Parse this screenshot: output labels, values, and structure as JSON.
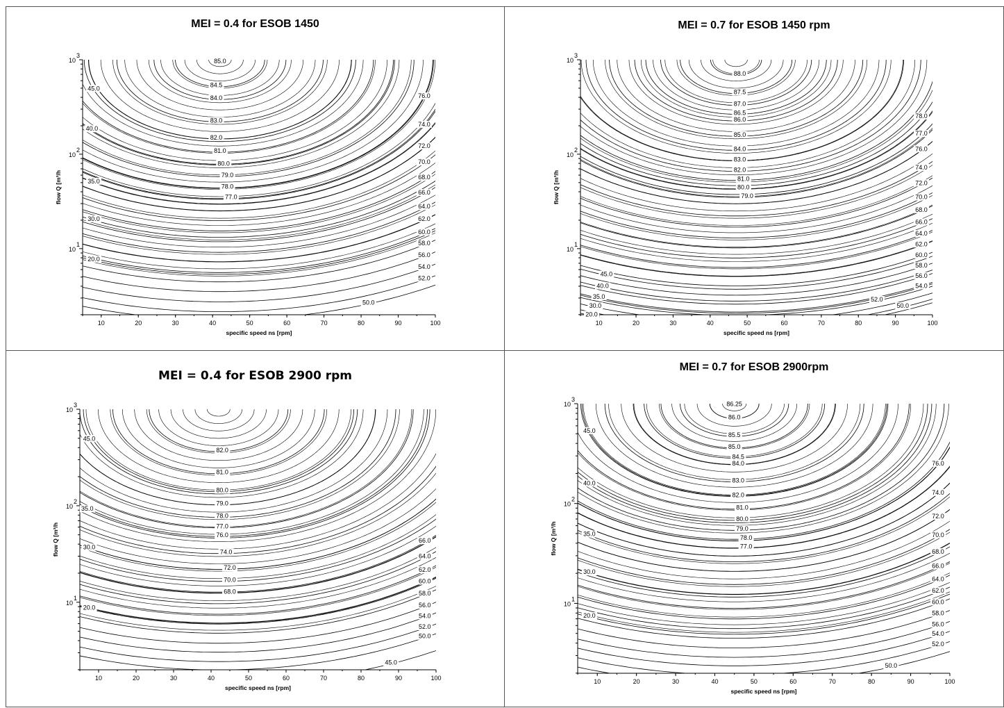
{
  "chart_data": [
    {
      "type": "contour",
      "title": "MEI = 0.4 for ESOB 1450",
      "xlabel": "specific speed ns [rpm]",
      "ylabel": "flow Q [m³/h",
      "x_ticks": [
        "10",
        "20",
        "30",
        "40",
        "50",
        "60",
        "70",
        "80",
        "90",
        "100"
      ],
      "y_ticks": [
        {
          "base": "10",
          "exp": "1"
        },
        {
          "base": "10",
          "exp": "2"
        },
        {
          "base": "10",
          "exp": "3"
        }
      ],
      "xlim": [
        5,
        100
      ],
      "ylim_log10": [
        0.3,
        3
      ],
      "optimum": {
        "x": 42,
        "log10_y": 3.0
      },
      "levels": [
        {
          "label": "85.0",
          "x": 42,
          "q": 935
        },
        {
          "label": "84.5",
          "x": 41,
          "q": 520
        },
        {
          "label": "84.0",
          "x": 41,
          "q": 380
        },
        {
          "label": "83.0",
          "x": 41,
          "q": 220
        },
        {
          "label": "82.0",
          "x": 41,
          "q": 145
        },
        {
          "label": "81.0",
          "x": 42,
          "q": 105
        },
        {
          "label": "80.0",
          "x": 43,
          "q": 77
        },
        {
          "label": "79.0",
          "x": 44,
          "q": 58
        },
        {
          "label": "78.0",
          "x": 44,
          "q": 44
        },
        {
          "label": "77.0",
          "x": 45,
          "q": 34
        },
        {
          "label": "76.0",
          "x": 97,
          "q": 400
        },
        {
          "label": "74.0",
          "x": 97,
          "q": 200
        },
        {
          "label": "72.0",
          "x": 97,
          "q": 118
        },
        {
          "label": "70.0",
          "x": 97,
          "q": 80
        },
        {
          "label": "68.0",
          "x": 97,
          "q": 55
        },
        {
          "label": "66.0",
          "x": 97,
          "q": 38
        },
        {
          "label": "64.0",
          "x": 97,
          "q": 27
        },
        {
          "label": "62.0",
          "x": 97,
          "q": 20
        },
        {
          "label": "60.0",
          "x": 97,
          "q": 14.5
        },
        {
          "label": "58.0",
          "x": 97,
          "q": 11
        },
        {
          "label": "56.0",
          "x": 97,
          "q": 8.3
        },
        {
          "label": "54.0",
          "x": 97,
          "q": 6.2
        },
        {
          "label": "52.0",
          "x": 97,
          "q": 4.7
        },
        {
          "label": "50.0",
          "x": 82,
          "q": 2.6
        },
        {
          "label": "45.0",
          "x": 8,
          "q": 480
        },
        {
          "label": "40.0",
          "x": 7.5,
          "q": 180
        },
        {
          "label": "35.0",
          "x": 8,
          "q": 50
        },
        {
          "label": "30.0",
          "x": 8,
          "q": 20
        },
        {
          "label": "20.0",
          "x": 8,
          "q": 7.5
        }
      ]
    },
    {
      "type": "contour",
      "title": "MEI = 0.7 for ESOB 1450 rpm",
      "xlabel": "specific speed ns [rpm]",
      "ylabel": "flow Q [m³/h",
      "x_ticks": [
        "10",
        "20",
        "30",
        "40",
        "50",
        "60",
        "70",
        "80",
        "90",
        "100"
      ],
      "y_ticks": [
        {
          "base": "10",
          "exp": "1"
        },
        {
          "base": "10",
          "exp": "2"
        },
        {
          "base": "10",
          "exp": "3"
        }
      ],
      "xlim": [
        5,
        100
      ],
      "ylim_log10": [
        0.3,
        3
      ],
      "optimum": {
        "x": 47,
        "log10_y": 3.0
      },
      "levels": [
        {
          "label": "88.0",
          "x": 48,
          "q": 690
        },
        {
          "label": "87.5",
          "x": 48,
          "q": 440
        },
        {
          "label": "87.0",
          "x": 48,
          "q": 330
        },
        {
          "label": "86.5",
          "x": 48,
          "q": 265
        },
        {
          "label": "86.0",
          "x": 48,
          "q": 225
        },
        {
          "label": "85.0",
          "x": 48,
          "q": 155
        },
        {
          "label": "84.0",
          "x": 48,
          "q": 110
        },
        {
          "label": "83.0",
          "x": 48,
          "q": 85
        },
        {
          "label": "82.0",
          "x": 48,
          "q": 66
        },
        {
          "label": "81.0",
          "x": 49,
          "q": 53
        },
        {
          "label": "80.0",
          "x": 49,
          "q": 43
        },
        {
          "label": "79.0",
          "x": 50,
          "q": 35
        },
        {
          "label": "78.0",
          "x": 97,
          "q": 245
        },
        {
          "label": "77.0",
          "x": 97,
          "q": 160
        },
        {
          "label": "76.0",
          "x": 97,
          "q": 110
        },
        {
          "label": "74.0",
          "x": 97,
          "q": 70
        },
        {
          "label": "72.0",
          "x": 97,
          "q": 48
        },
        {
          "label": "70.0",
          "x": 97,
          "q": 34
        },
        {
          "label": "68.0",
          "x": 97,
          "q": 25
        },
        {
          "label": "66.0",
          "x": 97,
          "q": 18.5
        },
        {
          "label": "64.0",
          "x": 97,
          "q": 14
        },
        {
          "label": "62.0",
          "x": 97,
          "q": 10.8
        },
        {
          "label": "60.0",
          "x": 97,
          "q": 8.3
        },
        {
          "label": "58.0",
          "x": 97,
          "q": 6.4
        },
        {
          "label": "56.0",
          "x": 97,
          "q": 5.0
        },
        {
          "label": "54.0",
          "x": 97,
          "q": 3.9
        },
        {
          "label": "52.0",
          "x": 85,
          "q": 2.8
        },
        {
          "label": "50.0",
          "x": 92,
          "q": 2.4
        },
        {
          "label": "45.0",
          "x": 12,
          "q": 5.2
        },
        {
          "label": "40.0",
          "x": 11,
          "q": 3.9
        },
        {
          "label": "35.0",
          "x": 10,
          "q": 3.0
        },
        {
          "label": "30.0",
          "x": 9,
          "q": 2.4
        },
        {
          "label": "20.0",
          "x": 8,
          "q": 1.95
        }
      ]
    },
    {
      "type": "contour",
      "title": "MEI = 0.4 for ESOB 2900 rpm",
      "xlabel": "specific speed ns [rpm]",
      "ylabel": "flow Q [m³/h",
      "x_ticks": [
        "10",
        "20",
        "30",
        "40",
        "50",
        "60",
        "70",
        "80",
        "90",
        "100"
      ],
      "y_ticks": [
        {
          "base": "10",
          "exp": "1"
        },
        {
          "base": "10",
          "exp": "2"
        },
        {
          "base": "10",
          "exp": "3"
        }
      ],
      "xlim": [
        5,
        100
      ],
      "ylim_log10": [
        0.3,
        3
      ],
      "optimum": {
        "x": 42,
        "log10_y": 3.0
      },
      "levels": [
        {
          "label": "82.0",
          "x": 43,
          "q": 365
        },
        {
          "label": "81.0",
          "x": 43,
          "q": 215
        },
        {
          "label": "80.0",
          "x": 43,
          "q": 140
        },
        {
          "label": "79.0",
          "x": 43,
          "q": 102
        },
        {
          "label": "78.0",
          "x": 43,
          "q": 76
        },
        {
          "label": "77.0",
          "x": 43,
          "q": 59
        },
        {
          "label": "76.0",
          "x": 43,
          "q": 48
        },
        {
          "label": "74.0",
          "x": 44,
          "q": 32
        },
        {
          "label": "72.0",
          "x": 45,
          "q": 22
        },
        {
          "label": "70.0",
          "x": 45,
          "q": 16.5
        },
        {
          "label": "68.0",
          "x": 45,
          "q": 12.5
        },
        {
          "label": "66.0",
          "x": 97,
          "q": 42
        },
        {
          "label": "64.0",
          "x": 97,
          "q": 29
        },
        {
          "label": "62.0",
          "x": 97,
          "q": 21
        },
        {
          "label": "60.0",
          "x": 97,
          "q": 16
        },
        {
          "label": "58.0",
          "x": 97,
          "q": 12
        },
        {
          "label": "56.0",
          "x": 97,
          "q": 9
        },
        {
          "label": "54.0",
          "x": 97,
          "q": 7
        },
        {
          "label": "52.0",
          "x": 97,
          "q": 5.4
        },
        {
          "label": "50.0",
          "x": 97,
          "q": 4.3
        },
        {
          "label": "45.0",
          "x": 88,
          "q": 2.3
        },
        {
          "label": "45.0",
          "x": 7.5,
          "q": 480
        },
        {
          "label": "35.0",
          "x": 7,
          "q": 90
        },
        {
          "label": "30.0",
          "x": 7.5,
          "q": 36
        },
        {
          "label": "20.0",
          "x": 7.5,
          "q": 8.5
        }
      ]
    },
    {
      "type": "contour",
      "title": "MEI = 0.7 for ESOB 2900rpm",
      "xlabel": "specific speed ns [rpm]",
      "ylabel": "flow Q [m³/h",
      "x_ticks": [
        "10",
        "20",
        "30",
        "40",
        "50",
        "60",
        "70",
        "80",
        "90",
        "100"
      ],
      "y_ticks": [
        {
          "base": "10",
          "exp": "1"
        },
        {
          "base": "10",
          "exp": "2"
        },
        {
          "base": "10",
          "exp": "3"
        }
      ],
      "xlim": [
        5,
        100
      ],
      "ylim_log10": [
        0.3,
        3
      ],
      "optimum": {
        "x": 45,
        "log10_y": 3.0
      },
      "levels": [
        {
          "label": "86.25",
          "x": 45,
          "q": 960
        },
        {
          "label": "86.0",
          "x": 45,
          "q": 710
        },
        {
          "label": "85.5",
          "x": 45,
          "q": 470
        },
        {
          "label": "85.0",
          "x": 45,
          "q": 360
        },
        {
          "label": "84.5",
          "x": 46,
          "q": 285
        },
        {
          "label": "84.0",
          "x": 46,
          "q": 245
        },
        {
          "label": "83.0",
          "x": 46,
          "q": 165
        },
        {
          "label": "82.0",
          "x": 46,
          "q": 118
        },
        {
          "label": "81.0",
          "x": 47,
          "q": 88
        },
        {
          "label": "80.0",
          "x": 47,
          "q": 68
        },
        {
          "label": "79.0",
          "x": 47,
          "q": 54
        },
        {
          "label": "78.0",
          "x": 48,
          "q": 44
        },
        {
          "label": "77.0",
          "x": 48,
          "q": 36
        },
        {
          "label": "76.0",
          "x": 97,
          "q": 245
        },
        {
          "label": "74.0",
          "x": 97,
          "q": 125
        },
        {
          "label": "72.0",
          "x": 97,
          "q": 72
        },
        {
          "label": "70.0",
          "x": 97,
          "q": 47
        },
        {
          "label": "68.0",
          "x": 97,
          "q": 32
        },
        {
          "label": "66.0",
          "x": 97,
          "q": 23
        },
        {
          "label": "64.0",
          "x": 97,
          "q": 17
        },
        {
          "label": "62.0",
          "x": 97,
          "q": 13
        },
        {
          "label": "60.0",
          "x": 97,
          "q": 10
        },
        {
          "label": "58.0",
          "x": 97,
          "q": 7.7
        },
        {
          "label": "56.0",
          "x": 97,
          "q": 6
        },
        {
          "label": "54.0",
          "x": 97,
          "q": 4.8
        },
        {
          "label": "52.0",
          "x": 97,
          "q": 3.8
        },
        {
          "label": "50.0",
          "x": 85,
          "q": 2.3
        },
        {
          "label": "45.0",
          "x": 8,
          "q": 520
        },
        {
          "label": "40.0",
          "x": 8,
          "q": 155
        },
        {
          "label": "35.0",
          "x": 8,
          "q": 48
        },
        {
          "label": "30.0",
          "x": 8,
          "q": 20
        },
        {
          "label": "20.0",
          "x": 8,
          "q": 7.3
        }
      ]
    }
  ]
}
